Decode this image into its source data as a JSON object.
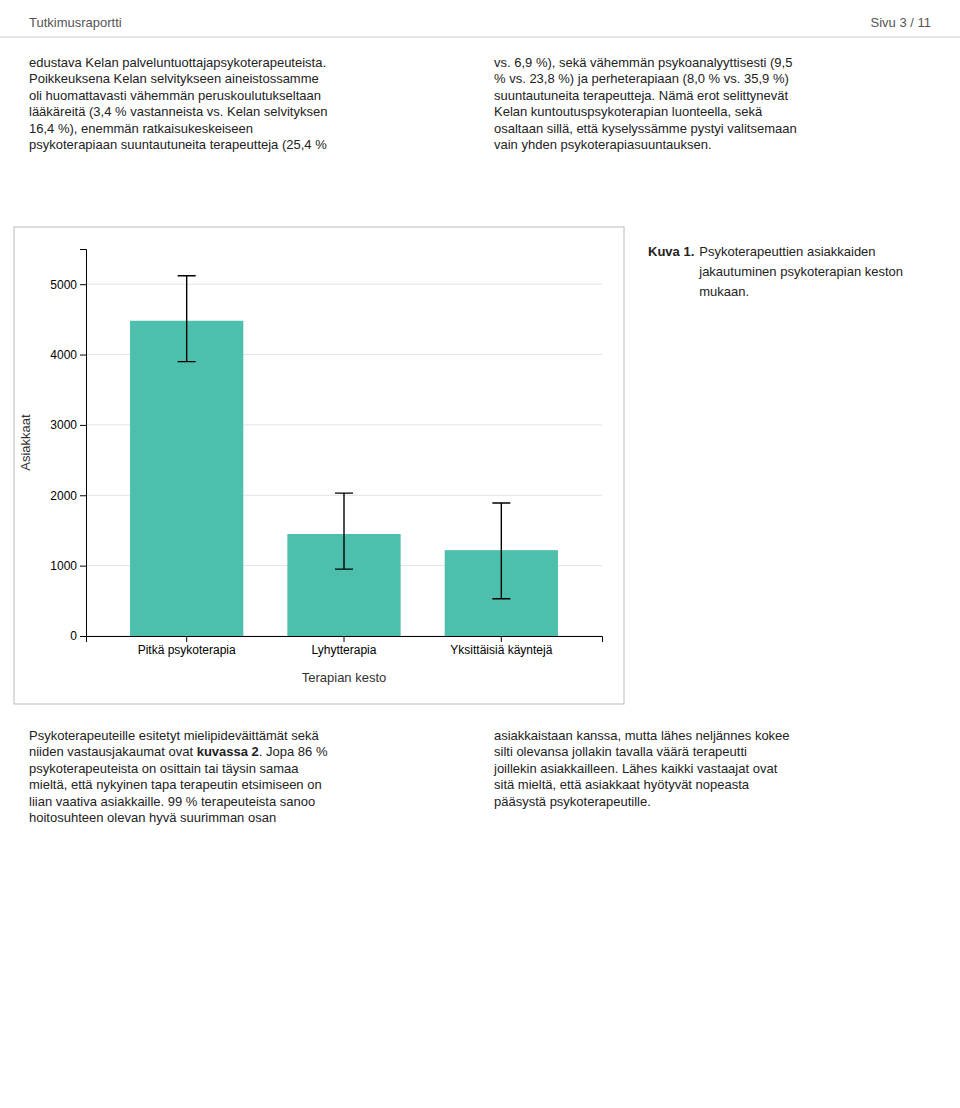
{
  "page_text": {
    "header_left": "Tutkimusraportti",
    "header_right": "Sivu 3 / 11",
    "top_left": [
      "edustava Kelan palveluntuottajapsykoterapeuteista.",
      "Poikkeuksena Kelan selvitykseen aineistossamme",
      "oli huomattavasti vähemmän peruskoulutukseltaan",
      "lääkäreitä (3,4 % vastanneista vs. Kelan selvityksen",
      "16,4 %), enemmän ratkaisukeskeiseen",
      "psykoterapiaan suuntautuneita terapeutteja (25,4 %"
    ],
    "top_right": [
      "vs. 6,9 %), sekä vähemmän psykoanalyyttisesti (9,5",
      "% vs. 23,8 %) ja perheterapiaan (8,0 % vs. 35,9 %)",
      "suuntautuneita terapeutteja. Nämä erot selittynevät",
      "Kelan kuntoutuspsykoterapian luonteella, sekä",
      "osaltaan sillä, että kyselyssämme pystyi valitsemaan",
      "vain yhden psykoterapiasuuntauksen."
    ],
    "caption": {
      "label": "Kuva 1.",
      "lines": [
        "Psykoterapeuttien asiakkaiden",
        "jakautuminen psykoterapian keston",
        "mukaan."
      ]
    },
    "bottom_left": [
      [
        {
          "text": "Psykoterapeuteille esitetyt mielipidеväittämät sekä",
          "bold": false
        }
      ],
      [
        {
          "text": "niiden vastausjakaumat ovat ",
          "bold": false
        },
        {
          "text": "kuvassa 2",
          "bold": true
        },
        {
          "text": ". Jopa 86 %",
          "bold": false
        }
      ],
      [
        {
          "text": "psykoterapeuteista on osittain tai täysin samaa",
          "bold": false
        }
      ],
      [
        {
          "text": "mieltä, että nykyinen tapa terapeutin etsimiseen on",
          "bold": false
        }
      ],
      [
        {
          "text": "liian vaativa asiakkaille. 99 % terapeuteista sanoo",
          "bold": false
        }
      ],
      [
        {
          "text": "hoitosuhteen olevan hyvä suurimman osan",
          "bold": false
        }
      ]
    ],
    "bottom_right": [
      "asiakkaistaan kanssa, mutta lähes neljännes kokee",
      "silti olevansa jollakin tavalla väärä terapeutti",
      "joillekin asiakkailleen. Lähes kaikki vastaajat ovat",
      "sitä mieltä, että asiakkaat hyötyvät nopeasta",
      "pääsystä psykoterapeutille."
    ]
  },
  "chart_data": {
    "type": "bar",
    "categories": [
      "Pitkä psykoterapia",
      "Lyhytterapia",
      "Yksittäisiä käyntejä"
    ],
    "values": [
      4480,
      1450,
      1220
    ],
    "error_low": [
      3900,
      950,
      530
    ],
    "error_high": [
      5120,
      2030,
      1890
    ],
    "color": "#4DBFAD",
    "xlabel": "Terapian kesto",
    "ylabel": "Asiakkaat",
    "ylim": [
      0,
      5500
    ],
    "yticks": [
      0,
      1000,
      2000,
      3000,
      4000,
      5000
    ],
    "grid": true
  }
}
